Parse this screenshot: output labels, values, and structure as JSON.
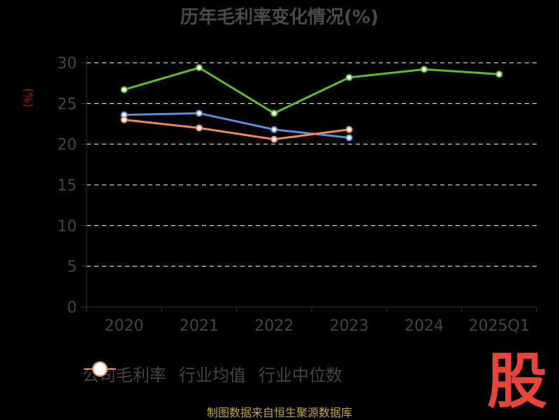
{
  "chart_data": {
    "type": "line",
    "title": "历年毛利率变化情况(%)",
    "ylabel": "(%)",
    "categories": [
      "2020",
      "2021",
      "2022",
      "2023",
      "2024",
      "2025Q1"
    ],
    "ylim": [
      0,
      30
    ],
    "yticks": [
      0,
      5,
      10,
      15,
      20,
      25,
      30
    ],
    "grid": true,
    "legend_position": "bottom",
    "series": [
      {
        "name": "公司毛利率",
        "color": "#5cbd2c",
        "values": [
          26.7,
          29.4,
          23.8,
          28.2,
          29.2,
          28.6
        ]
      },
      {
        "name": "行业均值",
        "color": "#5b8de0",
        "values": [
          23.6,
          23.8,
          21.8,
          20.8,
          null,
          null
        ]
      },
      {
        "name": "行业中位数",
        "color": "#f4875a",
        "values": [
          23.0,
          22.0,
          20.6,
          21.8,
          null,
          null
        ]
      }
    ]
  },
  "source": "制图数据来自恒生聚源数据库",
  "logo_text": "股",
  "logo_color": "#e8443a"
}
